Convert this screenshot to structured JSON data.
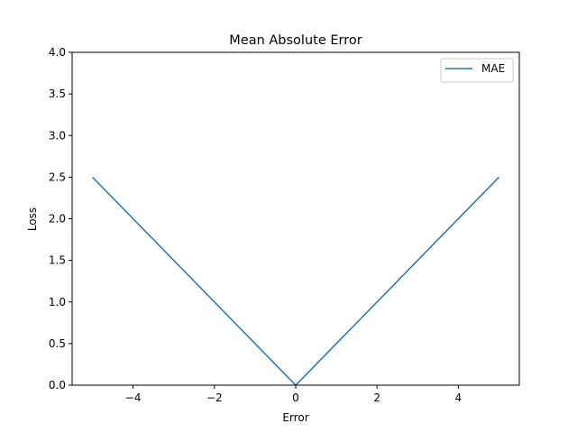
{
  "chart_data": {
    "type": "line",
    "title": "Mean Absolute Error",
    "xlabel": "Error",
    "ylabel": "Loss",
    "xlim": [
      -5.5,
      5.5
    ],
    "ylim": [
      0.0,
      4.0
    ],
    "x_ticks": [
      -4,
      -2,
      0,
      2,
      4
    ],
    "x_tick_labels": [
      "−4",
      "−2",
      "0",
      "2",
      "4"
    ],
    "y_ticks": [
      0.0,
      0.5,
      1.0,
      1.5,
      2.0,
      2.5,
      3.0,
      3.5,
      4.0
    ],
    "y_tick_labels": [
      "0.0",
      "0.5",
      "1.0",
      "1.5",
      "2.0",
      "2.5",
      "3.0",
      "3.5",
      "4.0"
    ],
    "grid": false,
    "legend_position": "top-right",
    "series": [
      {
        "name": "MAE",
        "color": "#1f77b4",
        "x": [
          -5,
          0,
          5
        ],
        "y": [
          2.5,
          0.0,
          2.5
        ]
      }
    ]
  }
}
